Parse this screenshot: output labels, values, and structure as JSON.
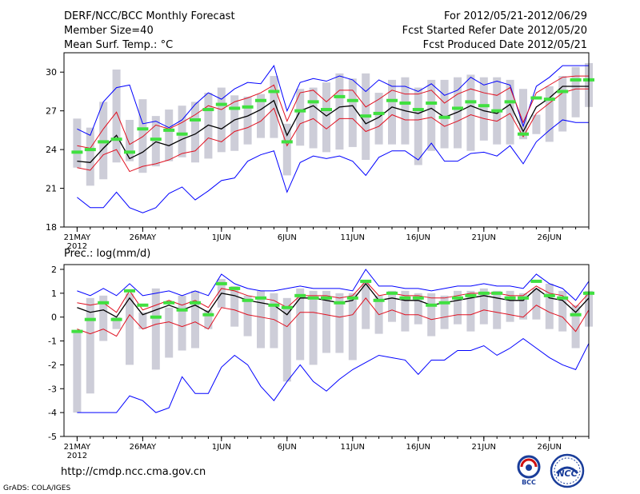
{
  "header": {
    "title": "DERF/NCC/BCC Monthly Forecast",
    "member": "Member Size=40",
    "variable": "Mean Surf. Temp.: °C",
    "period": "For 2012/05/21-2012/06/29",
    "started": "Fcst Started Refer Date 2012/05/20",
    "produced": "Fcst Produced Date 2012/05/21"
  },
  "footer": {
    "url": "http://cmdp.ncc.cma.gov.cn",
    "credit": "GrADS: COLA/IGES",
    "logo_left": "BCC",
    "logo_right": "NCC"
  },
  "colors": {
    "box": "#cdcdd8",
    "median": "#40e040",
    "mean": "#000000",
    "spread": "#e01020",
    "extreme": "#0000ff"
  },
  "chart_data": [
    {
      "type": "box-and-line",
      "title": "Mean Surf. Temp.: °C",
      "ylim": [
        18,
        31.5
      ],
      "yticks": [
        18,
        21,
        24,
        27,
        30
      ],
      "xlim": [
        0,
        40
      ],
      "xticks": [
        {
          "day": 1,
          "label": "21MAY",
          "sub": "2012"
        },
        {
          "day": 6,
          "label": "26MAY"
        },
        {
          "day": 12,
          "label": "1JUN"
        },
        {
          "day": 17,
          "label": "6JUN"
        },
        {
          "day": 22,
          "label": "11JUN"
        },
        {
          "day": 27,
          "label": "16JUN"
        },
        {
          "day": 32,
          "label": "21JUN"
        },
        {
          "day": 37,
          "label": "26JUN"
        }
      ],
      "days": [
        1,
        2,
        3,
        4,
        5,
        6,
        7,
        8,
        9,
        10,
        11,
        12,
        13,
        14,
        15,
        16,
        17,
        18,
        19,
        20,
        21,
        22,
        23,
        24,
        25,
        26,
        27,
        28,
        29,
        30,
        31,
        32,
        33,
        34,
        35,
        36,
        37,
        38,
        39,
        40
      ],
      "box_low": [
        22.6,
        21.2,
        21.7,
        23.0,
        23.1,
        22.2,
        22.7,
        23.1,
        23.4,
        23.0,
        23.3,
        23.8,
        23.9,
        24.4,
        24.9,
        24.9,
        22.0,
        24.3,
        24.1,
        23.8,
        24.0,
        24.2,
        23.2,
        24.4,
        24.4,
        24.4,
        22.8,
        23.9,
        24.1,
        24.1,
        23.9,
        24.7,
        24.4,
        24.4,
        24.8,
        25.2,
        24.6,
        25.4,
        26.5,
        27.3
      ],
      "box_high": [
        26.4,
        25.7,
        27.7,
        30.2,
        26.3,
        27.9,
        26.6,
        27.1,
        27.4,
        27.7,
        28.4,
        28.8,
        28.2,
        28.1,
        28.3,
        29.7,
        26.0,
        28.7,
        28.8,
        29.2,
        29.9,
        29.5,
        29.9,
        28.4,
        29.4,
        29.6,
        28.8,
        29.4,
        29.4,
        29.6,
        29.8,
        29.6,
        29.6,
        29.4,
        28.7,
        26.7,
        28.9,
        29.7,
        30.4,
        30.7
      ],
      "median": [
        23.8,
        24.0,
        24.6,
        24.8,
        23.8,
        25.6,
        24.8,
        25.5,
        25.2,
        26.3,
        27.1,
        27.5,
        27.2,
        27.3,
        27.8,
        28.5,
        24.6,
        27.0,
        27.7,
        27.1,
        28.1,
        27.8,
        26.6,
        26.8,
        27.8,
        27.6,
        27.1,
        27.6,
        26.5,
        27.2,
        27.7,
        27.4,
        27.0,
        27.7,
        25.2,
        28.0,
        27.9,
        28.5,
        29.4,
        29.4
      ],
      "mean": [
        23.1,
        23.0,
        24.1,
        25.1,
        23.3,
        23.8,
        24.6,
        24.3,
        24.8,
        25.2,
        25.9,
        25.6,
        26.3,
        26.6,
        27.1,
        27.8,
        25.1,
        27.0,
        27.4,
        26.6,
        27.3,
        27.4,
        26.0,
        26.5,
        27.3,
        27.0,
        26.8,
        27.2,
        26.5,
        26.9,
        27.4,
        27.0,
        26.8,
        27.5,
        25.4,
        27.3,
        28.0,
        28.9,
        28.9,
        28.9
      ],
      "upper": [
        24.3,
        24.1,
        25.6,
        26.9,
        24.4,
        25.0,
        25.9,
        25.6,
        26.1,
        26.7,
        27.4,
        27.1,
        27.7,
        28.0,
        28.4,
        29.0,
        26.2,
        28.4,
        28.6,
        27.7,
        28.6,
        28.6,
        27.3,
        27.9,
        28.6,
        28.3,
        28.3,
        28.6,
        27.6,
        28.3,
        28.7,
        28.4,
        28.2,
        28.8,
        26.1,
        28.4,
        29.0,
        29.6,
        29.7,
        29.7
      ],
      "lower": [
        22.6,
        22.4,
        23.6,
        24.0,
        22.3,
        22.7,
        22.9,
        23.2,
        23.7,
        23.9,
        24.9,
        24.6,
        25.4,
        25.7,
        26.2,
        27.2,
        24.3,
        26.0,
        26.4,
        25.6,
        26.4,
        26.4,
        25.4,
        25.8,
        26.7,
        26.3,
        26.3,
        26.5,
        25.8,
        26.2,
        26.7,
        26.4,
        26.2,
        26.8,
        25.0,
        26.8,
        27.6,
        28.4,
        28.7,
        28.7
      ],
      "max": [
        25.6,
        25.1,
        27.7,
        28.8,
        29.0,
        26.0,
        26.2,
        25.7,
        26.3,
        27.5,
        28.4,
        27.9,
        28.7,
        29.2,
        29.1,
        30.5,
        27.0,
        29.2,
        29.5,
        29.3,
        29.7,
        29.4,
        28.5,
        29.4,
        28.9,
        28.9,
        28.5,
        29.1,
        28.2,
        28.6,
        29.6,
        29.0,
        29.3,
        29.0,
        25.8,
        28.9,
        29.6,
        30.5,
        30.5,
        30.5
      ],
      "min": [
        20.3,
        19.5,
        19.5,
        20.7,
        19.5,
        19.1,
        19.5,
        20.6,
        21.1,
        20.1,
        20.8,
        21.6,
        21.8,
        23.1,
        23.6,
        23.9,
        20.7,
        23.0,
        23.5,
        23.3,
        23.5,
        23.1,
        22.0,
        23.4,
        23.9,
        23.9,
        23.2,
        24.5,
        23.1,
        23.1,
        23.7,
        23.8,
        23.5,
        24.3,
        22.9,
        24.6,
        25.5,
        26.3,
        26.1,
        26.1
      ]
    },
    {
      "type": "box-and-line",
      "title": "Prec.: log(mm/d)",
      "ylim": [
        -5,
        2.2
      ],
      "yticks": [
        -5,
        -4,
        -3,
        -2,
        -1,
        0,
        1,
        2
      ],
      "xlim": [
        0,
        40
      ],
      "xticks": [
        {
          "day": 1,
          "label": "21MAY",
          "sub": "2012"
        },
        {
          "day": 6,
          "label": "26MAY"
        },
        {
          "day": 12,
          "label": "1JUN"
        },
        {
          "day": 17,
          "label": "6JUN"
        },
        {
          "day": 22,
          "label": "11JUN"
        },
        {
          "day": 27,
          "label": "16JUN"
        },
        {
          "day": 32,
          "label": "21JUN"
        },
        {
          "day": 37,
          "label": "26JUN"
        }
      ],
      "days": [
        1,
        2,
        3,
        4,
        5,
        6,
        7,
        8,
        9,
        10,
        11,
        12,
        13,
        14,
        15,
        16,
        17,
        18,
        19,
        20,
        21,
        22,
        23,
        24,
        25,
        26,
        27,
        28,
        29,
        30,
        31,
        32,
        33,
        34,
        35,
        36,
        37,
        38,
        39,
        40
      ],
      "box_low": [
        -4.0,
        -3.2,
        -1.0,
        -0.5,
        -2.0,
        -0.5,
        -2.2,
        -1.7,
        -1.4,
        -1.3,
        -0.5,
        0.4,
        -0.4,
        -0.8,
        -1.3,
        -1.3,
        -2.7,
        -1.8,
        -2.0,
        -1.5,
        -1.5,
        -1.8,
        -0.5,
        -0.7,
        -0.2,
        -0.6,
        -0.3,
        -0.8,
        -0.5,
        -0.3,
        -0.6,
        -0.3,
        -0.5,
        -0.2,
        -0.1,
        -0.1,
        -0.5,
        -0.6,
        -1.3,
        -0.4
      ],
      "box_high": [
        -0.6,
        0.8,
        0.9,
        0.0,
        1.0,
        0.2,
        1.2,
        0.4,
        0.9,
        1.1,
        0.3,
        1.6,
        1.3,
        0.9,
        1.1,
        1.0,
        0.8,
        1.2,
        1.1,
        1.1,
        1.0,
        1.0,
        1.5,
        0.9,
        1.1,
        1.1,
        1.0,
        1.0,
        0.9,
        1.1,
        1.1,
        1.2,
        1.1,
        1.1,
        1.0,
        1.2,
        1.4,
        1.1,
        0.5,
        1.1
      ],
      "median": [
        -0.6,
        -0.1,
        0.6,
        -0.1,
        1.1,
        0.5,
        0.0,
        0.6,
        0.3,
        0.6,
        0.1,
        1.4,
        1.2,
        0.7,
        0.8,
        0.5,
        0.4,
        0.9,
        0.8,
        0.8,
        0.6,
        0.8,
        1.5,
        0.7,
        1.0,
        0.8,
        0.8,
        0.5,
        0.6,
        0.8,
        0.9,
        1.0,
        1.0,
        0.8,
        0.8,
        1.5,
        0.9,
        0.8,
        0.1,
        1.0
      ],
      "mean": [
        0.4,
        0.2,
        0.3,
        0.0,
        0.8,
        0.1,
        0.3,
        0.5,
        0.3,
        0.5,
        0.2,
        1.0,
        0.9,
        0.7,
        0.6,
        0.5,
        0.1,
        0.8,
        0.8,
        0.7,
        0.6,
        0.7,
        1.4,
        0.7,
        0.8,
        0.7,
        0.7,
        0.5,
        0.6,
        0.7,
        0.8,
        0.9,
        0.8,
        0.7,
        0.7,
        1.2,
        0.8,
        0.7,
        0.2,
        0.8
      ],
      "upper": [
        0.6,
        0.5,
        0.6,
        0.2,
        1.1,
        0.3,
        0.5,
        0.7,
        0.5,
        0.7,
        0.4,
        1.2,
        1.1,
        0.9,
        0.8,
        0.7,
        0.4,
        0.9,
        0.9,
        0.9,
        0.8,
        0.9,
        1.5,
        0.9,
        1.0,
        0.9,
        0.9,
        0.8,
        0.8,
        0.9,
        1.0,
        1.0,
        1.0,
        0.9,
        0.9,
        1.3,
        1.0,
        0.9,
        0.4,
        1.0
      ],
      "lower": [
        -0.5,
        -0.7,
        -0.5,
        -0.8,
        0.1,
        -0.5,
        -0.3,
        -0.2,
        -0.4,
        -0.2,
        -0.5,
        0.4,
        0.3,
        0.1,
        0.0,
        -0.1,
        -0.4,
        0.2,
        0.2,
        0.1,
        0.0,
        0.1,
        0.8,
        0.1,
        0.3,
        0.1,
        0.1,
        -0.1,
        0.0,
        0.1,
        0.1,
        0.3,
        0.2,
        0.1,
        0.0,
        0.5,
        0.2,
        0.0,
        -0.6,
        0.3
      ],
      "max": [
        1.1,
        0.9,
        1.2,
        0.9,
        1.4,
        0.9,
        1.0,
        1.1,
        0.9,
        1.1,
        0.9,
        1.8,
        1.4,
        1.2,
        1.1,
        1.1,
        1.2,
        1.3,
        1.2,
        1.2,
        1.2,
        1.1,
        2.0,
        1.3,
        1.3,
        1.2,
        1.2,
        1.1,
        1.2,
        1.3,
        1.3,
        1.4,
        1.3,
        1.3,
        1.2,
        1.8,
        1.4,
        1.2,
        0.7,
        1.5
      ],
      "min": [
        -4.0,
        -4.0,
        -4.0,
        -4.0,
        -3.3,
        -3.5,
        -4.0,
        -3.8,
        -2.5,
        -3.2,
        -3.2,
        -2.1,
        -1.6,
        -2.0,
        -2.9,
        -3.5,
        -2.7,
        -2.0,
        -2.7,
        -3.1,
        -2.6,
        -2.2,
        -1.9,
        -1.6,
        -1.7,
        -1.8,
        -2.4,
        -1.8,
        -1.8,
        -1.4,
        -1.4,
        -1.2,
        -1.6,
        -1.3,
        -0.9,
        -1.3,
        -1.7,
        -2.0,
        -2.2,
        -1.1
      ]
    }
  ]
}
